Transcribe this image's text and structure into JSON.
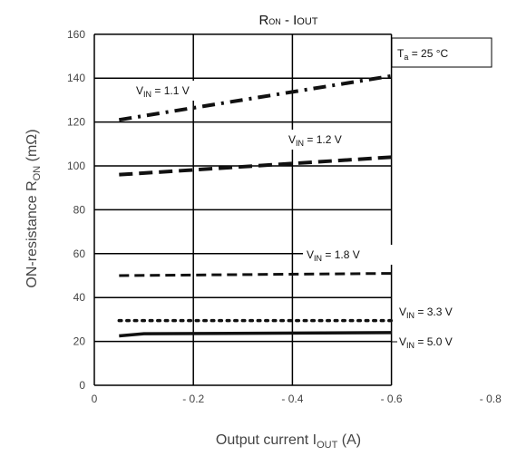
{
  "chart_data": {
    "type": "line",
    "title": {
      "main": "R",
      "sub1": "ON",
      "mid": " - I",
      "sub2": "OUT"
    },
    "xlabel": {
      "main": "Output current  I",
      "sub": "OUT",
      "tail": "  (A)"
    },
    "ylabel": {
      "main": "ON-resistance  R",
      "sub": "ON",
      "tail": "  (mΩ)"
    },
    "xlim": [
      0,
      -0.8
    ],
    "ylim": [
      0,
      160
    ],
    "xticks": [
      0,
      -0.2,
      -0.4,
      -0.6,
      -0.8
    ],
    "xtick_labels": [
      "0",
      "- 0.2",
      "- 0.4",
      "- 0.6",
      "- 0.8"
    ],
    "yticks": [
      0,
      20,
      40,
      60,
      80,
      100,
      120,
      140,
      160
    ],
    "ytick_labels": [
      "0",
      "20",
      "40",
      "60",
      "80",
      "100",
      "120",
      "140",
      "160"
    ],
    "grid": true,
    "plot_area_x_extent": [
      0,
      -0.6
    ],
    "annotation": {
      "main": "T",
      "sub": "a",
      "tail": " = 25 °C"
    },
    "series": [
      {
        "name": {
          "main": "V",
          "sub": "IN",
          "tail": " = 1.1 V"
        },
        "x": [
          -0.05,
          -0.6
        ],
        "y": [
          121,
          141
        ],
        "style": "dashdot"
      },
      {
        "name": {
          "main": "V",
          "sub": "IN",
          "tail": " = 1.2 V"
        },
        "x": [
          -0.05,
          -0.6
        ],
        "y": [
          96,
          104
        ],
        "style": "dashed"
      },
      {
        "name": {
          "main": "V",
          "sub": "IN",
          "tail": " = 1.8 V"
        },
        "x": [
          -0.05,
          -0.6
        ],
        "y": [
          50,
          51
        ],
        "style": "dashed-thin"
      },
      {
        "name": {
          "main": "V",
          "sub": "IN",
          "tail": " = 3.3 V"
        },
        "x": [
          -0.05,
          -0.6
        ],
        "y": [
          29.5,
          29.5
        ],
        "style": "dotted"
      },
      {
        "name": {
          "main": "V",
          "sub": "IN",
          "tail": " = 5.0 V"
        },
        "x": [
          -0.05,
          -0.1,
          -0.6
        ],
        "y": [
          22.5,
          23.5,
          24
        ],
        "style": "solid"
      }
    ]
  }
}
